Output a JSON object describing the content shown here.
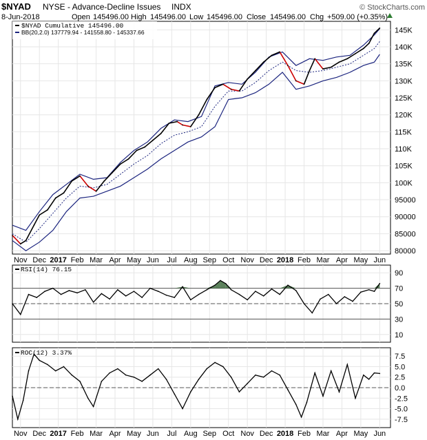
{
  "header": {
    "symbol": "$NYAD",
    "description": "NYSE - Advance-Decline Issues",
    "exchange": "INDX",
    "credit": "© StockCharts.com",
    "date": "8-Jun-2018",
    "open_label": "Open",
    "open": "145496.00",
    "high_label": "High",
    "high": "145496.00",
    "low_label": "Low",
    "low": "145496.00",
    "close_label": "Close",
    "close": "145496.00",
    "chg_label": "Chg",
    "chg": "+509.00 (+0.35%)"
  },
  "legend": {
    "main": "$NYAD Cumulative 145496.00",
    "bb": "BB(20,2.0) 137779.94 - 141558.80 - 145337.66",
    "rsi": "RSI(14) 76.15",
    "roc": "ROC(12) 3.37%"
  },
  "colors": {
    "price": "#000000",
    "price_down": "#cc0000",
    "bands": "#1a237e",
    "rsi_fill": "#3f6b3f",
    "grid": "#e6e6e6",
    "refline": "#555555"
  },
  "chart_data": [
    {
      "type": "line",
      "title": "$NYAD NYSE - Advance-Decline Issues INDX",
      "ylim": [
        79000,
        147500
      ],
      "y_ticks": [
        "80000",
        "85000",
        "90000",
        "95000",
        "100K",
        "105K",
        "110K",
        "115K",
        "120K",
        "125K",
        "130K",
        "135K",
        "140K",
        "145K"
      ],
      "y_tick_values": [
        80000,
        85000,
        90000,
        95000,
        100000,
        105000,
        110000,
        115000,
        120000,
        125000,
        130000,
        135000,
        140000,
        145000
      ],
      "x_labels": [
        "Nov",
        "Dec",
        "2017",
        "Feb",
        "Mar",
        "Apr",
        "May",
        "Jun",
        "Jul",
        "Aug",
        "Sep",
        "Oct",
        "Nov",
        "Dec",
        "2018",
        "Feb",
        "Mar",
        "Apr",
        "May",
        "Jun"
      ],
      "x_label_positions": [
        0.3,
        1.0,
        1.7,
        2.4,
        3.1,
        3.8,
        4.5,
        5.2,
        5.9,
        6.6,
        7.3,
        8.0,
        8.7,
        9.4,
        10.1,
        10.8,
        11.5,
        12.2,
        12.9,
        13.6
      ],
      "x_range": [
        0,
        14.0
      ],
      "series": [
        {
          "name": "$NYAD Cumulative",
          "x": [
            0.0,
            0.3,
            0.5,
            0.8,
            1.0,
            1.3,
            1.6,
            1.9,
            2.2,
            2.5,
            2.8,
            3.1,
            3.4,
            3.7,
            4.0,
            4.3,
            4.6,
            4.9,
            5.2,
            5.5,
            5.8,
            6.1,
            6.3,
            6.6,
            6.9,
            7.2,
            7.5,
            7.8,
            8.1,
            8.4,
            8.7,
            9.0,
            9.3,
            9.6,
            9.9,
            10.2,
            10.5,
            10.8,
            11.0,
            11.2,
            11.5,
            11.8,
            12.1,
            12.4,
            12.7,
            13.0,
            13.2,
            13.4,
            13.6
          ],
          "values": [
            84500,
            82000,
            83000,
            87500,
            90500,
            92000,
            95500,
            97000,
            100500,
            102000,
            99000,
            97500,
            100500,
            103000,
            105500,
            107000,
            109500,
            110500,
            112500,
            114500,
            117500,
            118000,
            117000,
            116500,
            120000,
            124500,
            128000,
            129000,
            127500,
            127000,
            130500,
            133000,
            135500,
            137500,
            138500,
            134500,
            130000,
            129000,
            133000,
            136500,
            133500,
            134000,
            135500,
            136500,
            138000,
            139500,
            141000,
            144000,
            145496
          ]
        },
        {
          "name": "Upper Band",
          "x": [
            0.0,
            0.5,
            1.0,
            1.5,
            2.0,
            2.5,
            3.0,
            3.5,
            4.0,
            4.5,
            5.0,
            5.5,
            6.0,
            6.5,
            7.0,
            7.5,
            8.0,
            8.5,
            9.0,
            9.5,
            10.0,
            10.5,
            11.0,
            11.5,
            12.0,
            12.5,
            13.0,
            13.4,
            13.6
          ],
          "values": [
            87500,
            86000,
            91500,
            96500,
            99500,
            102500,
            101000,
            101500,
            106000,
            109500,
            112000,
            116000,
            118500,
            118000,
            119500,
            128500,
            129500,
            129000,
            132500,
            137000,
            138500,
            134500,
            136500,
            136000,
            137000,
            137500,
            140500,
            143500,
            145338
          ]
        },
        {
          "name": "Middle Band",
          "x": [
            0.0,
            0.5,
            1.0,
            1.5,
            2.0,
            2.5,
            3.0,
            3.5,
            4.0,
            4.5,
            5.0,
            5.5,
            6.0,
            6.5,
            7.0,
            7.5,
            8.0,
            8.5,
            9.0,
            9.5,
            10.0,
            10.5,
            11.0,
            11.5,
            12.0,
            12.5,
            13.0,
            13.4,
            13.6
          ],
          "values": [
            85000,
            82500,
            86500,
            91000,
            95500,
            99000,
            98500,
            99500,
            102500,
            105500,
            108000,
            111500,
            114000,
            115000,
            116500,
            122500,
            127000,
            127000,
            129500,
            133000,
            135500,
            133000,
            132500,
            133000,
            134000,
            135000,
            137500,
            139500,
            141559
          ]
        },
        {
          "name": "Lower Band",
          "x": [
            0.0,
            0.5,
            1.0,
            1.5,
            2.0,
            2.5,
            3.0,
            3.5,
            4.0,
            4.5,
            5.0,
            5.5,
            6.0,
            6.5,
            7.0,
            7.5,
            8.0,
            8.5,
            9.0,
            9.5,
            10.0,
            10.5,
            11.0,
            11.5,
            12.0,
            12.5,
            13.0,
            13.4,
            13.6
          ],
          "values": [
            83000,
            80000,
            82500,
            86000,
            91500,
            95500,
            96000,
            97500,
            99000,
            101500,
            104000,
            107000,
            109500,
            112000,
            113500,
            116500,
            124500,
            125000,
            126500,
            129000,
            132500,
            127500,
            128500,
            130000,
            131000,
            132500,
            134500,
            135500,
            137780
          ]
        }
      ]
    },
    {
      "type": "line",
      "title": "RSI(14)",
      "ylim": [
        0,
        100
      ],
      "y_ticks": [
        "10",
        "30",
        "50",
        "70",
        "90"
      ],
      "y_tick_values": [
        10,
        30,
        50,
        70,
        90
      ],
      "ref_lines": [
        30,
        50,
        70
      ],
      "x": [
        0.0,
        0.3,
        0.6,
        0.9,
        1.2,
        1.5,
        1.8,
        2.1,
        2.4,
        2.7,
        3.0,
        3.3,
        3.6,
        3.9,
        4.2,
        4.5,
        4.8,
        5.1,
        5.4,
        5.7,
        6.0,
        6.3,
        6.6,
        6.9,
        7.2,
        7.5,
        7.7,
        7.9,
        8.1,
        8.4,
        8.7,
        9.0,
        9.3,
        9.6,
        9.9,
        10.2,
        10.5,
        10.8,
        11.1,
        11.4,
        11.7,
        12.0,
        12.3,
        12.6,
        12.9,
        13.2,
        13.4,
        13.6
      ],
      "values": [
        50,
        36,
        62,
        58,
        66,
        70,
        62,
        67,
        64,
        68,
        52,
        63,
        56,
        68,
        60,
        66,
        58,
        70,
        66,
        61,
        58,
        72,
        55,
        62,
        68,
        74,
        80,
        76,
        68,
        62,
        55,
        66,
        60,
        69,
        62,
        74,
        67,
        50,
        38,
        56,
        62,
        50,
        59,
        53,
        65,
        68,
        66,
        76.15
      ]
    },
    {
      "type": "line",
      "title": "ROC(12)",
      "ylim": [
        -9.5,
        9.5
      ],
      "y_ticks": [
        "-7.5",
        "-5.0",
        "-2.5",
        "0.0",
        "2.5",
        "5.0",
        "7.5"
      ],
      "y_tick_values": [
        -7.5,
        -5.0,
        -2.5,
        0.0,
        2.5,
        5.0,
        7.5
      ],
      "ref_lines": [
        0
      ],
      "x": [
        0.0,
        0.2,
        0.4,
        0.6,
        0.8,
        1.0,
        1.3,
        1.6,
        1.9,
        2.2,
        2.5,
        2.8,
        3.0,
        3.3,
        3.6,
        3.9,
        4.2,
        4.5,
        4.8,
        5.1,
        5.4,
        5.7,
        6.0,
        6.3,
        6.6,
        6.9,
        7.2,
        7.5,
        7.8,
        8.1,
        8.4,
        8.7,
        9.0,
        9.3,
        9.6,
        9.9,
        10.2,
        10.5,
        10.7,
        10.9,
        11.2,
        11.5,
        11.8,
        12.1,
        12.4,
        12.7,
        13.0,
        13.2,
        13.4,
        13.6
      ],
      "values": [
        -2.0,
        -7.5,
        -3.0,
        4.0,
        8.0,
        6.5,
        5.5,
        4.0,
        5.0,
        3.0,
        1.5,
        -2.5,
        -4.5,
        1.5,
        3.5,
        4.5,
        3.0,
        2.5,
        1.5,
        3.0,
        4.5,
        2.0,
        -1.5,
        -5.0,
        -1.0,
        2.0,
        4.5,
        6.0,
        5.0,
        2.5,
        -1.0,
        1.0,
        3.0,
        2.5,
        4.0,
        3.0,
        -0.5,
        -4.0,
        -7.0,
        -3.5,
        3.5,
        -2.0,
        4.0,
        -1.0,
        5.5,
        -2.5,
        3.0,
        2.0,
        3.5,
        3.37
      ]
    }
  ]
}
